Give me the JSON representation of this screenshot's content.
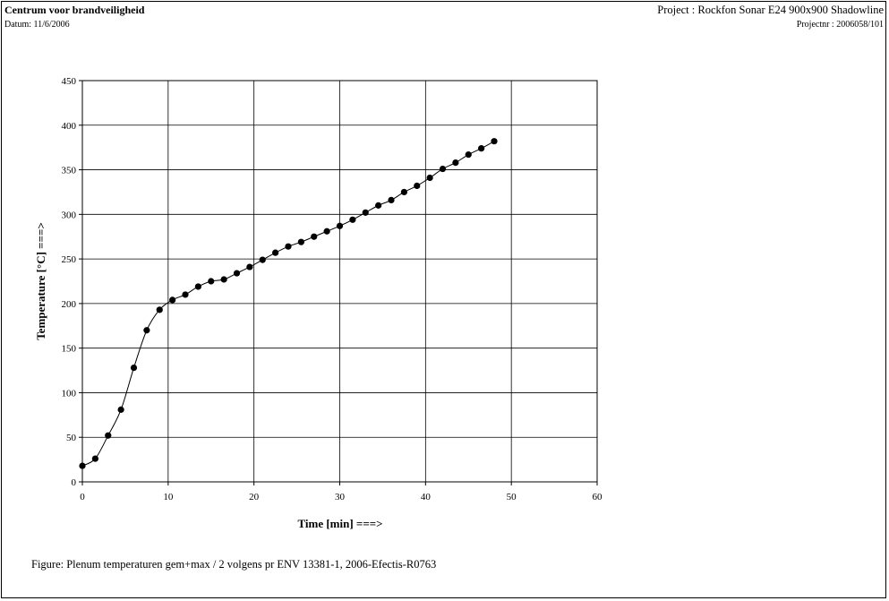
{
  "header": {
    "title": "Centrum voor brandveiligheid",
    "date": "Datum: 11/6/2006",
    "project": "Project : Rockfon Sonar E24 900x900 Shadowline",
    "project_number": "Projectnr : 2006058/101"
  },
  "caption": "Figure: Plenum temperaturen gem+max / 2 volgens pr ENV 13381-1, 2006-Efectis-R0763",
  "chart_data": {
    "type": "line",
    "title": "",
    "xlabel": "Time [min] ===>",
    "ylabel": "Temperature [°C] ===>",
    "xlim": [
      0,
      60
    ],
    "ylim": [
      0,
      450
    ],
    "xticks": [
      0,
      10,
      20,
      30,
      40,
      50,
      60
    ],
    "yticks": [
      0,
      50,
      100,
      150,
      200,
      250,
      300,
      350,
      400,
      450
    ],
    "grid": true,
    "marker": "circle",
    "line_color": "#000000",
    "marker_color": "#000000",
    "x": [
      0,
      1.5,
      3,
      4.5,
      6,
      7.5,
      9,
      10.5,
      12,
      13.5,
      15,
      16.5,
      18,
      19.5,
      21,
      22.5,
      24,
      25.5,
      27,
      28.5,
      30,
      31.5,
      33,
      34.5,
      36,
      37.5,
      39,
      40.5,
      42,
      43.5,
      45,
      46.5,
      48
    ],
    "values": [
      18,
      26,
      52,
      81,
      128,
      170,
      193,
      204,
      210,
      219,
      225,
      227,
      234,
      241,
      249,
      257,
      264,
      269,
      275,
      281,
      287,
      294,
      302,
      310,
      316,
      325,
      332,
      341,
      351,
      358,
      367,
      374,
      382
    ]
  }
}
